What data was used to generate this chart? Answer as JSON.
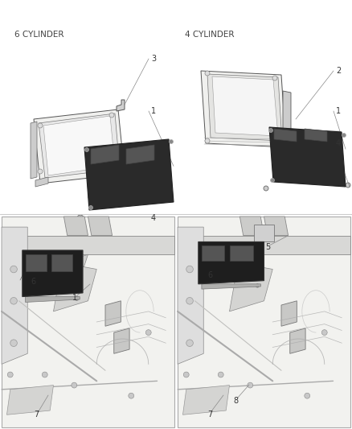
{
  "bg": "#ffffff",
  "top_left_label": "6 CYLINDER",
  "top_right_label": "4 CYLINDER",
  "label_fs": 7,
  "label_color": "#444444",
  "line_color": "#555555",
  "num_color": "#333333",
  "num_fs": 7,
  "divider_color": "#cccccc",
  "sketch_bg": "#f5f5f3",
  "sketch_edge": "#aaaaaa"
}
